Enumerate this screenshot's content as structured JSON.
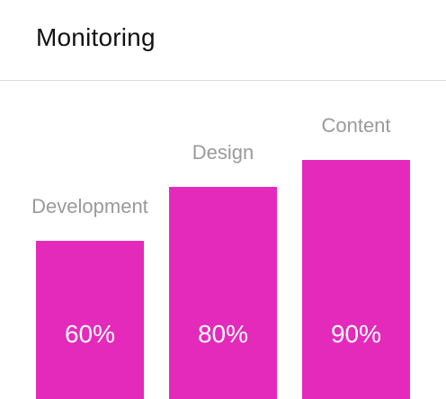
{
  "header": {
    "title": "Monitoring"
  },
  "colors": {
    "bar": "#e42abb",
    "label": "#9a9a9a"
  },
  "chart_data": {
    "type": "bar",
    "title": "",
    "categories": [
      "Development",
      "Design",
      "Content"
    ],
    "values": [
      60,
      80,
      90
    ],
    "value_labels": [
      "60%",
      "80%",
      "90%"
    ],
    "ylim": [
      0,
      100
    ],
    "grid": false,
    "legend": "none"
  }
}
